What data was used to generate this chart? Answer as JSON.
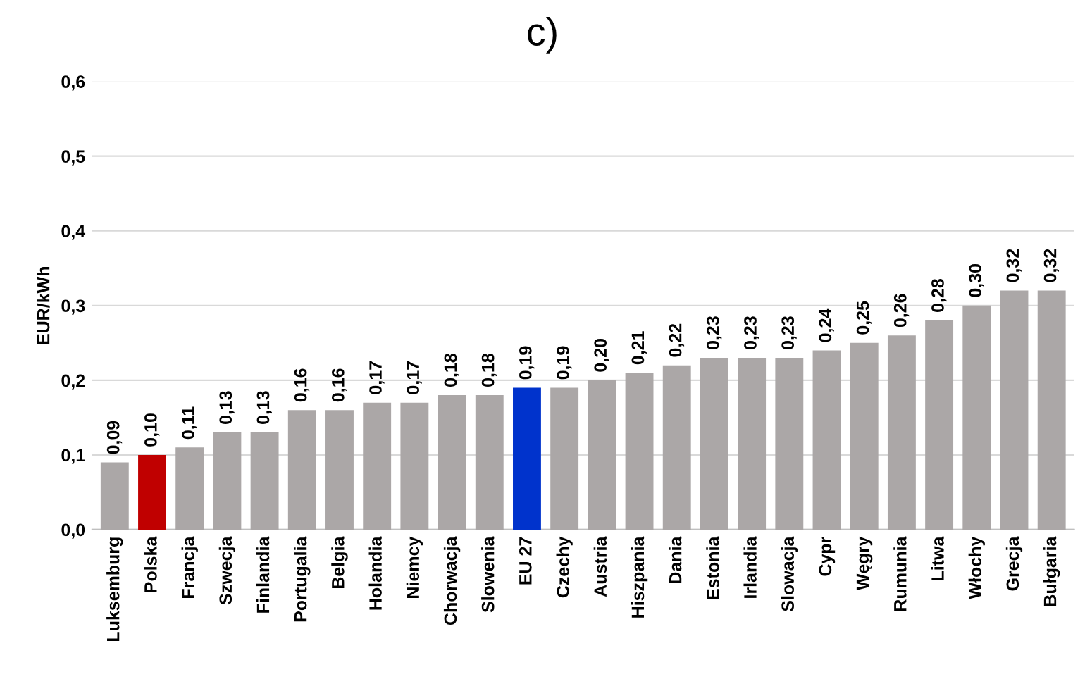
{
  "chart_data": {
    "type": "bar",
    "title": "c)",
    "ylabel": "EUR/kWh",
    "categories": [
      "Luksemburg",
      "Polska",
      "Francja",
      "Szwecja",
      "Finlandia",
      "Portugalia",
      "Belgia",
      "Holandia",
      "Niemcy",
      "Chorwacja",
      "Slowenia",
      "EU 27",
      "Czechy",
      "Austria",
      "Hiszpania",
      "Dania",
      "Estonia",
      "Irlandia",
      "Slowacja",
      "Cypr",
      "Węgry",
      "Rumunia",
      "Litwa",
      "Włochy",
      "Grecja",
      "Bułgaria"
    ],
    "values": [
      0.09,
      0.1,
      0.11,
      0.13,
      0.13,
      0.16,
      0.16,
      0.17,
      0.17,
      0.18,
      0.18,
      0.19,
      0.19,
      0.2,
      0.21,
      0.22,
      0.23,
      0.23,
      0.23,
      0.24,
      0.25,
      0.26,
      0.28,
      0.3,
      0.32,
      0.32
    ],
    "value_labels": [
      "0,09",
      "0,10",
      "0,11",
      "0,13",
      "0,13",
      "0,16",
      "0,16",
      "0,17",
      "0,17",
      "0,18",
      "0,18",
      "0,19",
      "0,19",
      "0,20",
      "0,21",
      "0,22",
      "0,23",
      "0,23",
      "0,23",
      "0,24",
      "0,25",
      "0,26",
      "0,28",
      "0,30",
      "0,32",
      "0,32"
    ],
    "colors": [
      "#aba7a7",
      "#c00000",
      "#aba7a7",
      "#aba7a7",
      "#aba7a7",
      "#aba7a7",
      "#aba7a7",
      "#aba7a7",
      "#aba7a7",
      "#aba7a7",
      "#aba7a7",
      "#0033cc",
      "#aba7a7",
      "#aba7a7",
      "#aba7a7",
      "#aba7a7",
      "#aba7a7",
      "#aba7a7",
      "#aba7a7",
      "#aba7a7",
      "#aba7a7",
      "#aba7a7",
      "#aba7a7",
      "#aba7a7",
      "#aba7a7",
      "#aba7a7"
    ],
    "ylim": [
      0,
      0.6
    ],
    "yticks": [
      {
        "value": 0,
        "label": "0,0"
      },
      {
        "value": 0.1,
        "label": "0,1"
      },
      {
        "value": 0.2,
        "label": "0,2"
      },
      {
        "value": 0.3,
        "label": "0,3"
      },
      {
        "value": 0.4,
        "label": "0,4"
      },
      {
        "value": 0.5,
        "label": "0,5"
      },
      {
        "value": 0.6,
        "label": "0,6"
      }
    ],
    "grid": "y"
  }
}
